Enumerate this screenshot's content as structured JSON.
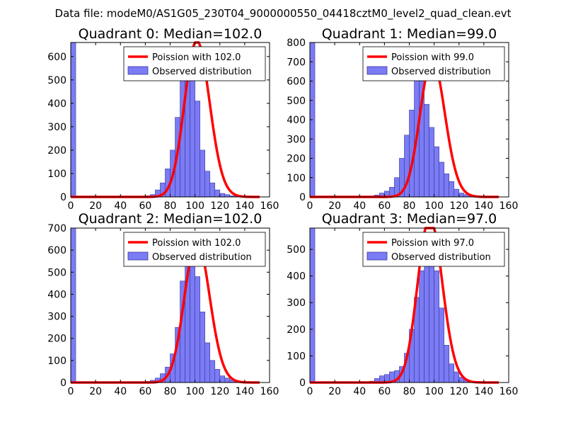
{
  "suptitle": "Data file: modeM0/AS1G05_230T04_9000000550_04418cztM0_level2_quad_clean.evt",
  "colors": {
    "bars": "#7b7bf5",
    "bar_edge": "#3a3a9c",
    "poisson": "#ff0000",
    "frame": "#000000"
  },
  "chart_data": [
    {
      "type": "bar",
      "title": "Quadrant 0: Median=102.0",
      "median": 102.0,
      "xlim": [
        0,
        160
      ],
      "ylim": [
        0,
        660
      ],
      "xticks": [
        "0",
        "20",
        "40",
        "60",
        "80",
        "100",
        "120",
        "140",
        "160"
      ],
      "yticks": [
        "100",
        "200",
        "300",
        "400",
        "500",
        "600"
      ],
      "bin_edges_start": 0,
      "bin_width": 4,
      "counts": [
        660,
        0,
        0,
        0,
        0,
        0,
        0,
        0,
        0,
        0,
        0,
        0,
        0,
        0,
        0,
        5,
        10,
        30,
        60,
        120,
        200,
        340,
        520,
        580,
        560,
        410,
        200,
        110,
        60,
        30,
        15,
        10,
        5,
        3,
        2,
        1,
        0,
        0,
        0,
        0
      ],
      "legend": {
        "line": "Poission with 102.0",
        "bars": "Observed distribution",
        "loc": "upper right"
      }
    },
    {
      "type": "bar",
      "title": "Quadrant 1: Median=99.0",
      "median": 99.0,
      "xlim": [
        0,
        160
      ],
      "ylim": [
        0,
        800
      ],
      "xticks": [
        "0",
        "20",
        "40",
        "60",
        "80",
        "100",
        "120",
        "140",
        "160"
      ],
      "yticks": [
        "100",
        "200",
        "300",
        "400",
        "500",
        "600",
        "700",
        "800"
      ],
      "bin_edges_start": 0,
      "bin_width": 4,
      "counts": [
        800,
        0,
        0,
        0,
        0,
        0,
        0,
        0,
        0,
        0,
        0,
        2,
        5,
        10,
        20,
        30,
        50,
        100,
        200,
        320,
        450,
        620,
        600,
        480,
        360,
        260,
        180,
        120,
        80,
        40,
        20,
        12,
        8,
        5,
        2,
        1,
        0,
        0,
        0,
        0
      ],
      "legend": {
        "line": "Poission with 99.0",
        "bars": "Observed distribution",
        "loc": "upper right"
      }
    },
    {
      "type": "bar",
      "title": "Quadrant 2: Median=102.0",
      "median": 102.0,
      "xlim": [
        0,
        160
      ],
      "ylim": [
        0,
        700
      ],
      "xticks": [
        "0",
        "20",
        "40",
        "60",
        "80",
        "100",
        "120",
        "140",
        "160"
      ],
      "yticks": [
        "100",
        "200",
        "300",
        "400",
        "500",
        "600",
        "700"
      ],
      "bin_edges_start": 0,
      "bin_width": 4,
      "counts": [
        700,
        0,
        0,
        0,
        0,
        0,
        0,
        0,
        0,
        0,
        0,
        0,
        0,
        0,
        0,
        5,
        10,
        20,
        40,
        70,
        130,
        250,
        460,
        530,
        560,
        480,
        320,
        180,
        100,
        60,
        30,
        20,
        12,
        6,
        3,
        1,
        0,
        0,
        0,
        0
      ],
      "legend": {
        "line": "Poission with 102.0",
        "bars": "Observed distribution",
        "loc": "upper right"
      }
    },
    {
      "type": "bar",
      "title": "Quadrant 3: Median=97.0",
      "median": 97.0,
      "xlim": [
        0,
        160
      ],
      "ylim": [
        0,
        580
      ],
      "xticks": [
        "0",
        "20",
        "40",
        "60",
        "80",
        "100",
        "120",
        "140",
        "160"
      ],
      "yticks": [
        "100",
        "200",
        "300",
        "400",
        "500"
      ],
      "bin_edges_start": 0,
      "bin_width": 4,
      "counts": [
        580,
        0,
        0,
        0,
        0,
        0,
        0,
        0,
        0,
        0,
        0,
        2,
        5,
        15,
        25,
        30,
        40,
        45,
        60,
        110,
        200,
        320,
        420,
        480,
        540,
        420,
        280,
        140,
        70,
        40,
        20,
        10,
        5,
        3,
        1,
        0,
        0,
        0,
        0,
        0
      ],
      "legend": {
        "line": "Poission with 97.0",
        "bars": "Observed distribution",
        "loc": "upper right"
      }
    }
  ]
}
